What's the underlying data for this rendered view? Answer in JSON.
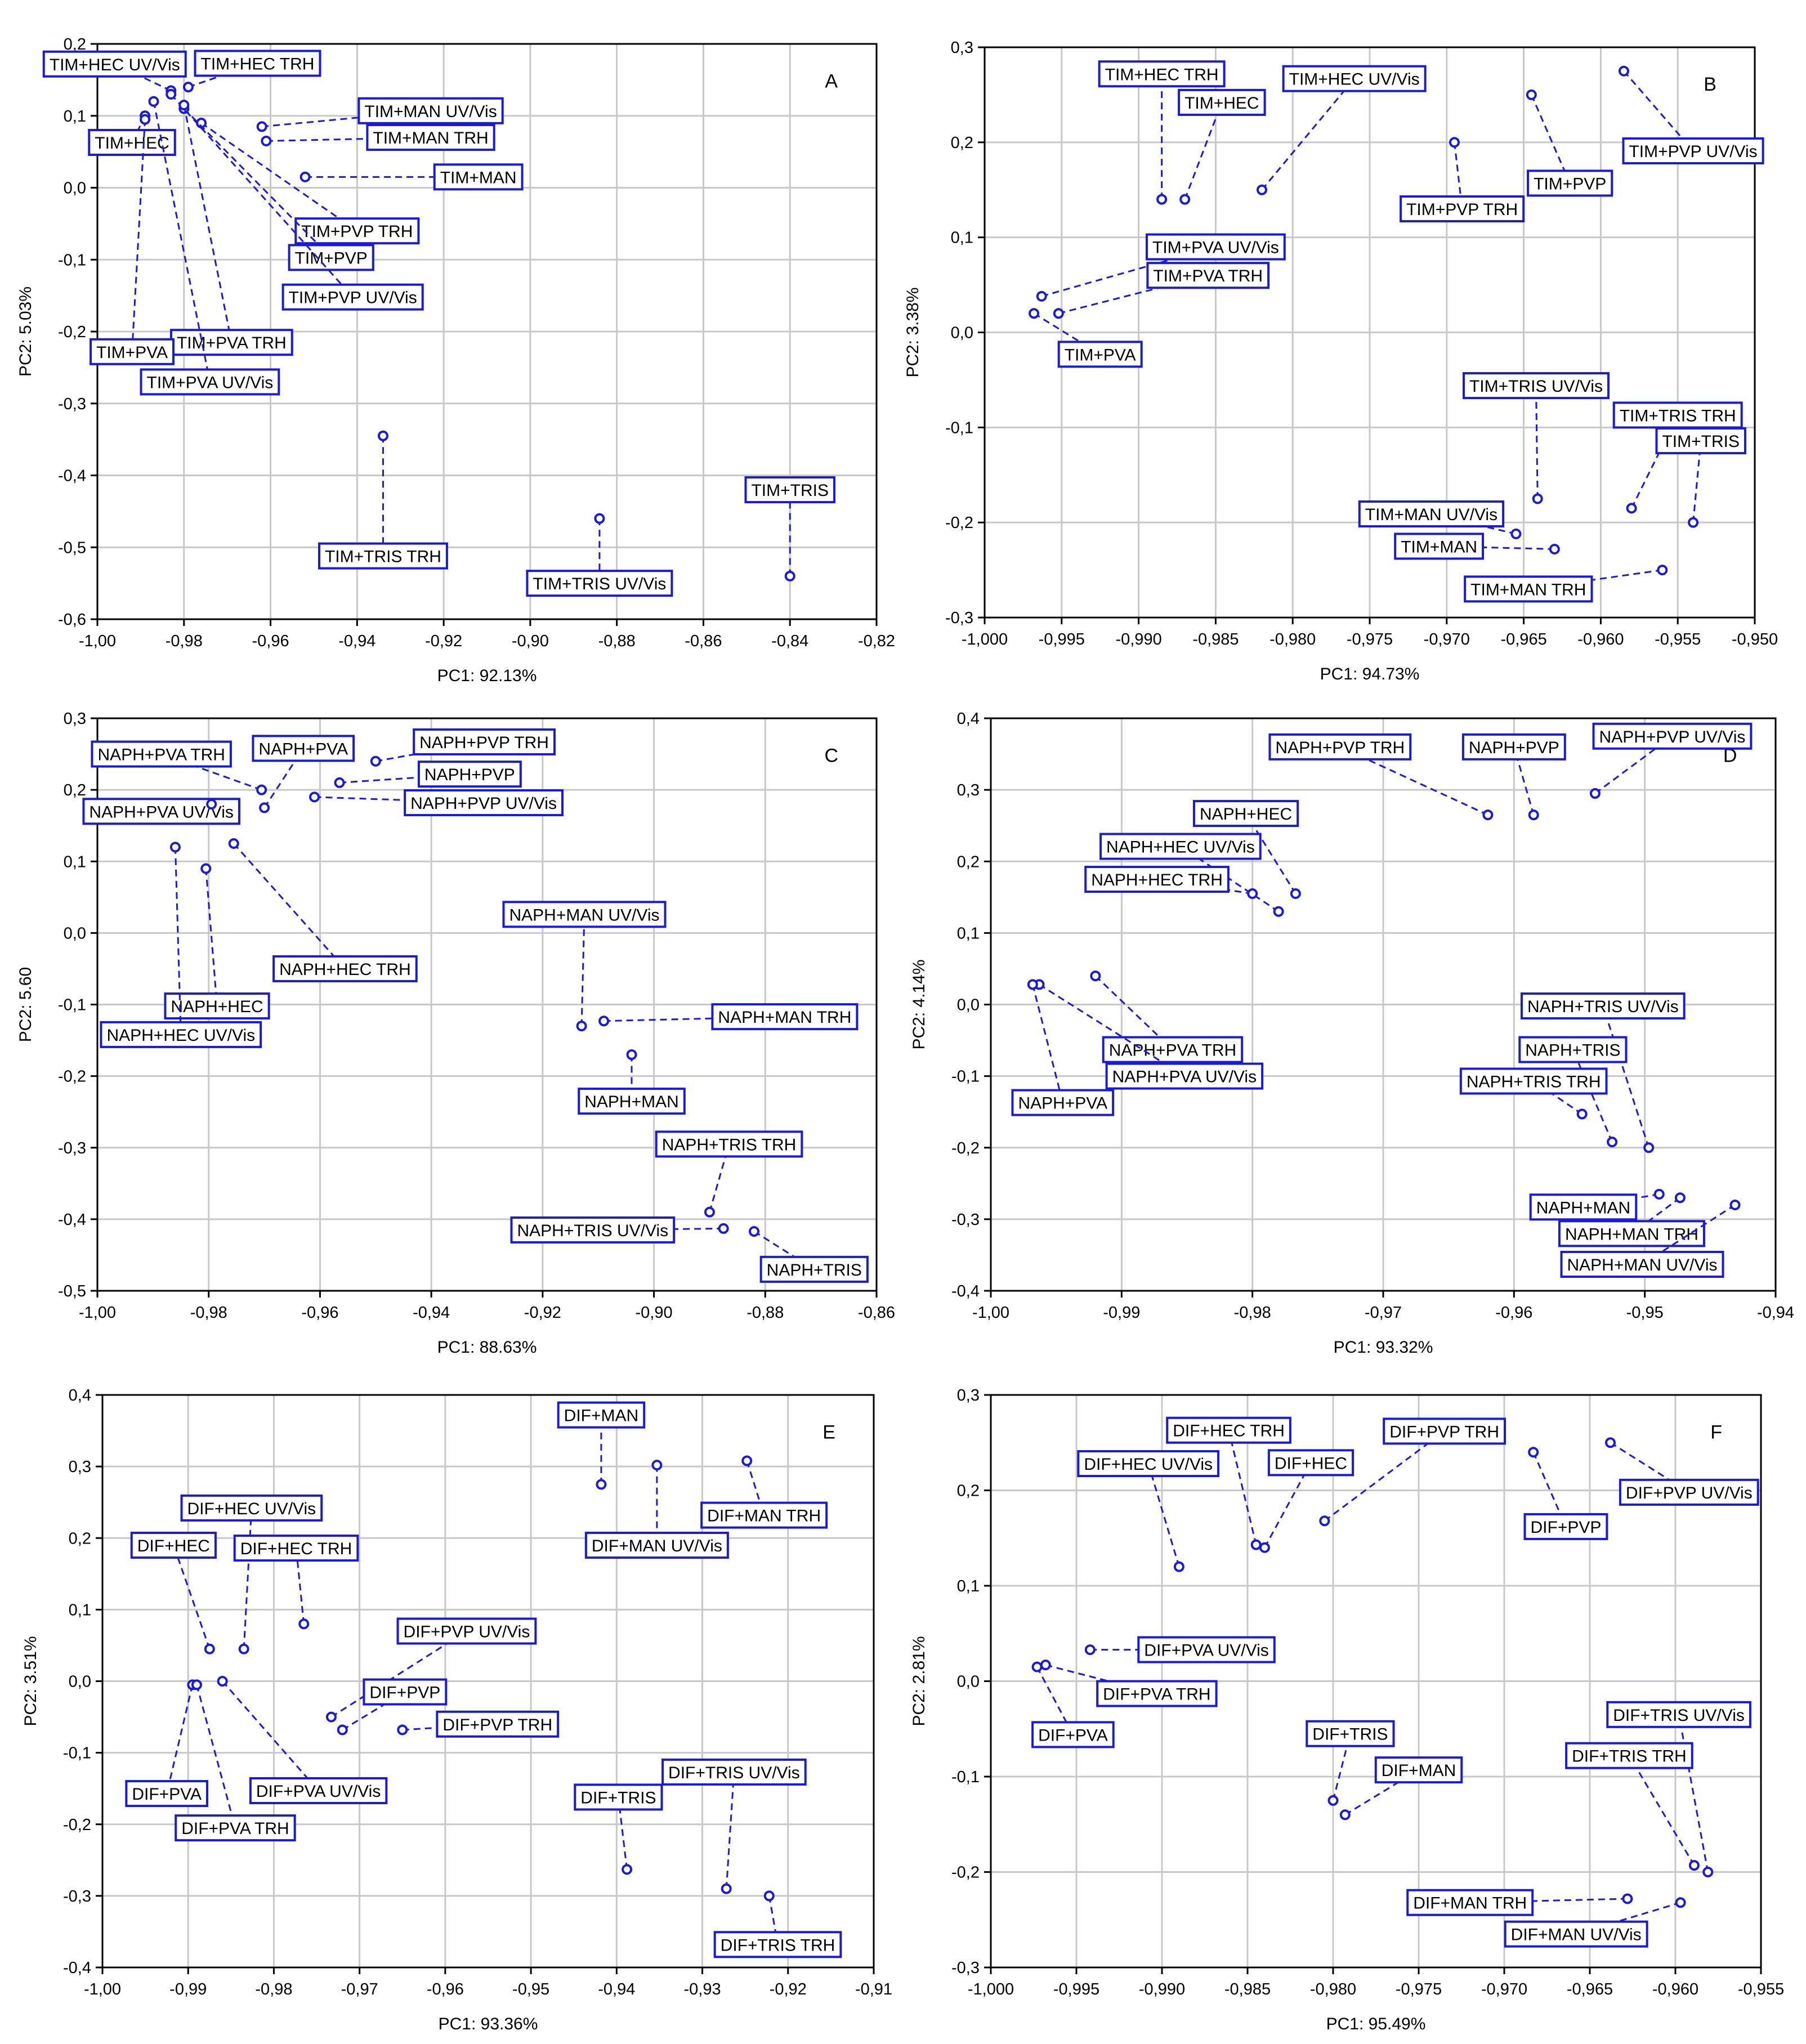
{
  "figure": {
    "accent_color": "#1a1adb",
    "grid_color": "#c8c8c8",
    "axis_color": "#000000"
  },
  "chart_data": [
    {
      "id": "A",
      "type": "scatter",
      "panel_letter": "A",
      "xlabel": "PC1: 92.13%",
      "ylabel": "PC2: 5.03%",
      "xlim": [
        -1.0,
        -0.82
      ],
      "ylim": [
        -0.6,
        0.2
      ],
      "xticks": [
        -1.0,
        -0.98,
        -0.96,
        -0.94,
        -0.92,
        -0.9,
        -0.88,
        -0.86,
        -0.84,
        -0.82
      ],
      "xtick_labels": [
        "-1,00",
        "-0,98",
        "-0,96",
        "-0,94",
        "-0,92",
        "-0,90",
        "-0,88",
        "-0,86",
        "-0,84",
        "-0,82"
      ],
      "yticks": [
        -0.6,
        -0.5,
        -0.4,
        -0.3,
        -0.2,
        -0.1,
        0.0,
        0.1,
        0.2
      ],
      "ytick_labels": [
        "-0,6",
        "-0,5",
        "-0,4",
        "-0,3",
        "-0,2",
        "-0,1",
        "0,0",
        "0,1",
        "0,2"
      ],
      "points": [
        {
          "label": "TIM+HEC UV/Vis",
          "x": -0.983,
          "y": 0.135,
          "lx": -0.996,
          "ly": 0.172
        },
        {
          "label": "TIM+HEC TRH",
          "x": -0.979,
          "y": 0.14,
          "lx": -0.963,
          "ly": 0.173
        },
        {
          "label": "TIM+HEC",
          "x": -0.989,
          "y": 0.1,
          "lx": -0.992,
          "ly": 0.063
        },
        {
          "label": "TIM+MAN UV/Vis",
          "x": -0.962,
          "y": 0.085,
          "lx": -0.923,
          "ly": 0.107
        },
        {
          "label": "TIM+MAN TRH",
          "x": -0.961,
          "y": 0.065,
          "lx": -0.923,
          "ly": 0.07
        },
        {
          "label": "TIM+MAN",
          "x": -0.952,
          "y": 0.015,
          "lx": -0.912,
          "ly": 0.015
        },
        {
          "label": "TIM+PVP TRH",
          "x": -0.976,
          "y": 0.09,
          "lx": -0.94,
          "ly": -0.06
        },
        {
          "label": "TIM+PVP",
          "x": -0.98,
          "y": 0.11,
          "lx": -0.946,
          "ly": -0.097
        },
        {
          "label": "TIM+PVP UV/Vis",
          "x": -0.983,
          "y": 0.13,
          "lx": -0.941,
          "ly": -0.152
        },
        {
          "label": "TIM+PVA TRH",
          "x": -0.98,
          "y": 0.115,
          "lx": -0.969,
          "ly": -0.215
        },
        {
          "label": "TIM+PVA",
          "x": -0.989,
          "y": 0.095,
          "lx": -0.992,
          "ly": -0.228
        },
        {
          "label": "TIM+PVA UV/Vis",
          "x": -0.987,
          "y": 0.12,
          "lx": -0.974,
          "ly": -0.27
        },
        {
          "label": "TIM+TRIS TRH",
          "x": -0.934,
          "y": -0.345,
          "lx": -0.934,
          "ly": -0.512
        },
        {
          "label": "TIM+TRIS UV/Vis",
          "x": -0.884,
          "y": -0.46,
          "lx": -0.884,
          "ly": -0.55
        },
        {
          "label": "TIM+TRIS",
          "x": -0.84,
          "y": -0.54,
          "lx": -0.84,
          "ly": -0.42
        }
      ]
    },
    {
      "id": "B",
      "type": "scatter",
      "panel_letter": "B",
      "xlabel": "PC1: 94.73%",
      "ylabel": "PC2: 3.38%",
      "xlim": [
        -1.0,
        -0.95
      ],
      "ylim": [
        -0.3,
        0.3
      ],
      "xticks": [
        -1.0,
        -0.995,
        -0.99,
        -0.985,
        -0.98,
        -0.975,
        -0.97,
        -0.965,
        -0.96,
        -0.955,
        -0.95
      ],
      "xtick_labels": [
        "-1,000",
        "-0,995",
        "-0,990",
        "-0,985",
        "-0,980",
        "-0,975",
        "-0,970",
        "-0,965",
        "-0,960",
        "-0,955",
        "-0,950"
      ],
      "yticks": [
        -0.3,
        -0.2,
        -0.1,
        0.0,
        0.1,
        0.2,
        0.3
      ],
      "ytick_labels": [
        "-0,3",
        "-0,2",
        "-0,1",
        "0,0",
        "0,1",
        "0,2",
        "0,3"
      ],
      "points": [
        {
          "label": "TIM+HEC TRH",
          "x": -0.9885,
          "y": 0.14,
          "lx": -0.9885,
          "ly": 0.272
        },
        {
          "label": "TIM+HEC",
          "x": -0.987,
          "y": 0.14,
          "lx": -0.9846,
          "ly": 0.242
        },
        {
          "label": "TIM+HEC UV/Vis",
          "x": -0.982,
          "y": 0.15,
          "lx": -0.976,
          "ly": 0.267
        },
        {
          "label": "TIM+PVP",
          "x": -0.9645,
          "y": 0.25,
          "lx": -0.962,
          "ly": 0.157
        },
        {
          "label": "TIM+PVP UV/Vis",
          "x": -0.9585,
          "y": 0.275,
          "lx": -0.954,
          "ly": 0.191
        },
        {
          "label": "TIM+PVP TRH",
          "x": -0.9695,
          "y": 0.2,
          "lx": -0.969,
          "ly": 0.13
        },
        {
          "label": "TIM+PVA UV/Vis",
          "x": -0.9963,
          "y": 0.038,
          "lx": -0.985,
          "ly": 0.09
        },
        {
          "label": "TIM+PVA TRH",
          "x": -0.9952,
          "y": 0.02,
          "lx": -0.9855,
          "ly": 0.06
        },
        {
          "label": "TIM+PVA",
          "x": -0.9968,
          "y": 0.02,
          "lx": -0.9925,
          "ly": -0.023
        },
        {
          "label": "TIM+TRIS UV/Vis",
          "x": -0.9641,
          "y": -0.175,
          "lx": -0.9642,
          "ly": -0.056
        },
        {
          "label": "TIM+TRIS TRH",
          "x": -0.958,
          "y": -0.185,
          "lx": -0.955,
          "ly": -0.087
        },
        {
          "label": "TIM+TRIS",
          "x": -0.954,
          "y": -0.2,
          "lx": -0.9535,
          "ly": -0.114
        },
        {
          "label": "TIM+MAN UV/Vis",
          "x": -0.9655,
          "y": -0.212,
          "lx": -0.971,
          "ly": -0.191
        },
        {
          "label": "TIM+MAN",
          "x": -0.963,
          "y": -0.228,
          "lx": -0.9705,
          "ly": -0.225
        },
        {
          "label": "TIM+MAN TRH",
          "x": -0.956,
          "y": -0.25,
          "lx": -0.9647,
          "ly": -0.27
        }
      ]
    },
    {
      "id": "C",
      "type": "scatter",
      "panel_letter": "C",
      "xlabel": "PC1: 88.63%",
      "ylabel": "PC2: 5.60",
      "xlim": [
        -1.0,
        -0.86
      ],
      "ylim": [
        -0.5,
        0.3
      ],
      "xticks": [
        -1.0,
        -0.98,
        -0.96,
        -0.94,
        -0.92,
        -0.9,
        -0.88,
        -0.86
      ],
      "xtick_labels": [
        "-1,00",
        "-0,98",
        "-0,96",
        "-0,94",
        "-0,92",
        "-0,90",
        "-0,88",
        "-0,86"
      ],
      "yticks": [
        -0.5,
        -0.4,
        -0.3,
        -0.2,
        -0.1,
        0.0,
        0.1,
        0.2,
        0.3
      ],
      "ytick_labels": [
        "-0,5",
        "-0,4",
        "-0,3",
        "-0,2",
        "-0,1",
        "0,0",
        "0,1",
        "0,2",
        "0,3"
      ],
      "points": [
        {
          "label": "NAPH+PVA TRH",
          "x": -0.9705,
          "y": 0.2,
          "lx": -0.9885,
          "ly": 0.25
        },
        {
          "label": "NAPH+PVA",
          "x": -0.97,
          "y": 0.175,
          "lx": -0.963,
          "ly": 0.258
        },
        {
          "label": "NAPH+PVA UV/Vis",
          "x": -0.9795,
          "y": 0.18,
          "lx": -0.9885,
          "ly": 0.17
        },
        {
          "label": "NAPH+PVP TRH",
          "x": -0.95,
          "y": 0.24,
          "lx": -0.9305,
          "ly": 0.267
        },
        {
          "label": "NAPH+PVP",
          "x": -0.9565,
          "y": 0.21,
          "lx": -0.9331,
          "ly": 0.222
        },
        {
          "label": "NAPH+PVP UV/Vis",
          "x": -0.961,
          "y": 0.19,
          "lx": -0.9306,
          "ly": 0.182
        },
        {
          "label": "NAPH+HEC TRH",
          "x": -0.9755,
          "y": 0.125,
          "lx": -0.9555,
          "ly": -0.05
        },
        {
          "label": "NAPH+HEC",
          "x": -0.9805,
          "y": 0.09,
          "lx": -0.9785,
          "ly": -0.102
        },
        {
          "label": "NAPH+HEC UV/Vis",
          "x": -0.986,
          "y": 0.12,
          "lx": -0.985,
          "ly": -0.142
        },
        {
          "label": "NAPH+MAN UV/Vis",
          "x": -0.913,
          "y": -0.13,
          "lx": -0.9125,
          "ly": 0.026
        },
        {
          "label": "NAPH+MAN TRH",
          "x": -0.909,
          "y": -0.123,
          "lx": -0.8765,
          "ly": -0.117
        },
        {
          "label": "NAPH+MAN",
          "x": -0.904,
          "y": -0.17,
          "lx": -0.904,
          "ly": -0.235
        },
        {
          "label": "NAPH+TRIS TRH",
          "x": -0.89,
          "y": -0.39,
          "lx": -0.8865,
          "ly": -0.295
        },
        {
          "label": "NAPH+TRIS UV/Vis",
          "x": -0.8875,
          "y": -0.413,
          "lx": -0.911,
          "ly": -0.415
        },
        {
          "label": "NAPH+TRIS",
          "x": -0.882,
          "y": -0.417,
          "lx": -0.8712,
          "ly": -0.47
        }
      ]
    },
    {
      "id": "D",
      "type": "scatter",
      "panel_letter": "D",
      "xlabel": "PC1: 93.32%",
      "ylabel": "PC2: 4.14%",
      "xlim": [
        -1.0,
        -0.94
      ],
      "ylim": [
        -0.4,
        0.4
      ],
      "xticks": [
        -1.0,
        -0.99,
        -0.98,
        -0.97,
        -0.96,
        -0.95,
        -0.94
      ],
      "xtick_labels": [
        "-1,00",
        "-0,99",
        "-0,98",
        "-0,97",
        "-0,96",
        "-0,95",
        "-0,94"
      ],
      "yticks": [
        -0.4,
        -0.3,
        -0.2,
        -0.1,
        0.0,
        0.1,
        0.2,
        0.3,
        0.4
      ],
      "ytick_labels": [
        "-0,4",
        "-0,3",
        "-0,2",
        "-0,1",
        "0,0",
        "0,1",
        "0,2",
        "0,3",
        "0,4"
      ],
      "points": [
        {
          "label": "NAPH+PVP TRH",
          "x": -0.962,
          "y": 0.265,
          "lx": -0.9733,
          "ly": 0.36
        },
        {
          "label": "NAPH+PVP",
          "x": -0.9585,
          "y": 0.265,
          "lx": -0.96,
          "ly": 0.36
        },
        {
          "label": "NAPH+PVP UV/Vis",
          "x": -0.9538,
          "y": 0.295,
          "lx": -0.9479,
          "ly": 0.375
        },
        {
          "label": "NAPH+HEC",
          "x": -0.9767,
          "y": 0.155,
          "lx": -0.9805,
          "ly": 0.267
        },
        {
          "label": "NAPH+HEC UV/Vis",
          "x": -0.978,
          "y": 0.13,
          "lx": -0.9855,
          "ly": 0.221
        },
        {
          "label": "NAPH+HEC TRH",
          "x": -0.98,
          "y": 0.155,
          "lx": -0.9873,
          "ly": 0.175
        },
        {
          "label": "NAPH+PVA TRH",
          "x": -0.992,
          "y": 0.04,
          "lx": -0.9861,
          "ly": -0.063
        },
        {
          "label": "NAPH+PVA UV/Vis",
          "x": -0.9963,
          "y": 0.028,
          "lx": -0.9852,
          "ly": -0.1
        },
        {
          "label": "NAPH+PVA",
          "x": -0.9968,
          "y": 0.028,
          "lx": -0.9945,
          "ly": -0.137
        },
        {
          "label": "NAPH+TRIS UV/Vis",
          "x": -0.9497,
          "y": -0.2,
          "lx": -0.9532,
          "ly": -0.002
        },
        {
          "label": "NAPH+TRIS",
          "x": -0.9525,
          "y": -0.192,
          "lx": -0.9555,
          "ly": -0.063
        },
        {
          "label": "NAPH+TRIS TRH",
          "x": -0.9548,
          "y": -0.153,
          "lx": -0.9585,
          "ly": -0.107
        },
        {
          "label": "NAPH+MAN",
          "x": -0.9489,
          "y": -0.265,
          "lx": -0.9547,
          "ly": -0.283
        },
        {
          "label": "NAPH+MAN TRH",
          "x": -0.9473,
          "y": -0.27,
          "lx": -0.951,
          "ly": -0.32
        },
        {
          "label": "NAPH+MAN UV/Vis",
          "x": -0.9431,
          "y": -0.28,
          "lx": -0.9502,
          "ly": -0.363
        }
      ]
    },
    {
      "id": "E",
      "type": "scatter",
      "panel_letter": "E",
      "xlabel": "PC1: 93.36%",
      "ylabel": "PC2: 3.51%",
      "xlim": [
        -1.0,
        -0.91
      ],
      "ylim": [
        -0.4,
        0.4
      ],
      "xticks": [
        -1.0,
        -0.99,
        -0.98,
        -0.97,
        -0.96,
        -0.95,
        -0.94,
        -0.93,
        -0.92,
        -0.91
      ],
      "xtick_labels": [
        "-1,00",
        "-0,99",
        "-0,98",
        "-0,97",
        "-0,96",
        "-0,95",
        "-0,94",
        "-0,93",
        "-0,92",
        "-0,91"
      ],
      "yticks": [
        -0.4,
        -0.3,
        -0.2,
        -0.1,
        0.0,
        0.1,
        0.2,
        0.3,
        0.4
      ],
      "ytick_labels": [
        "-0,4",
        "-0,3",
        "-0,2",
        "-0,1",
        "0,0",
        "0,1",
        "0,2",
        "0,3",
        "0,4"
      ],
      "points": [
        {
          "label": "DIF+MAN",
          "x": -0.9418,
          "y": 0.275,
          "lx": -0.9418,
          "ly": 0.372
        },
        {
          "label": "DIF+MAN UV/Vis",
          "x": -0.9353,
          "y": 0.302,
          "lx": -0.9353,
          "ly": 0.19
        },
        {
          "label": "DIF+MAN TRH",
          "x": -0.9248,
          "y": 0.308,
          "lx": -0.9228,
          "ly": 0.232
        },
        {
          "label": "DIF+HEC UV/Vis",
          "x": -0.9835,
          "y": 0.045,
          "lx": -0.9826,
          "ly": 0.242
        },
        {
          "label": "DIF+HEC",
          "x": -0.9875,
          "y": 0.045,
          "lx": -0.9917,
          "ly": 0.19
        },
        {
          "label": "DIF+HEC TRH",
          "x": -0.9765,
          "y": 0.08,
          "lx": -0.9774,
          "ly": 0.186
        },
        {
          "label": "DIF+PVP UV/Vis",
          "x": -0.9733,
          "y": -0.05,
          "lx": -0.9575,
          "ly": 0.07
        },
        {
          "label": "DIF+PVP",
          "x": -0.972,
          "y": -0.068,
          "lx": -0.9647,
          "ly": -0.015
        },
        {
          "label": "DIF+PVP TRH",
          "x": -0.965,
          "y": -0.068,
          "lx": -0.9539,
          "ly": -0.06
        },
        {
          "label": "DIF+PVA",
          "x": -0.9895,
          "y": -0.005,
          "lx": -0.9925,
          "ly": -0.157
        },
        {
          "label": "DIF+PVA UV/Vis",
          "x": -0.986,
          "y": 0.0,
          "lx": -0.9748,
          "ly": -0.153
        },
        {
          "label": "DIF+PVA TRH",
          "x": -0.989,
          "y": -0.005,
          "lx": -0.9845,
          "ly": -0.205
        },
        {
          "label": "DIF+TRIS",
          "x": -0.9388,
          "y": -0.263,
          "lx": -0.9398,
          "ly": -0.162
        },
        {
          "label": "DIF+TRIS UV/Vis",
          "x": -0.9272,
          "y": -0.29,
          "lx": -0.9263,
          "ly": -0.127
        },
        {
          "label": "DIF+TRIS TRH",
          "x": -0.9222,
          "y": -0.3,
          "lx": -0.9212,
          "ly": -0.368
        }
      ]
    },
    {
      "id": "F",
      "type": "scatter",
      "panel_letter": "F",
      "xlabel": "PC1: 95.49%",
      "ylabel": "PC2: 2.81%",
      "xlim": [
        -1.0,
        -0.955
      ],
      "ylim": [
        -0.3,
        0.3
      ],
      "xticks": [
        -1.0,
        -0.995,
        -0.99,
        -0.985,
        -0.98,
        -0.975,
        -0.97,
        -0.965,
        -0.96,
        -0.955
      ],
      "xtick_labels": [
        "-1,000",
        "-0,995",
        "-0,990",
        "-0,985",
        "-0,980",
        "-0,975",
        "-0,970",
        "-0,965",
        "-0,960",
        "-0,955"
      ],
      "yticks": [
        -0.3,
        -0.2,
        -0.1,
        0.0,
        0.1,
        0.2,
        0.3
      ],
      "ytick_labels": [
        "-0,3",
        "-0,2",
        "-0,1",
        "0,0",
        "0,1",
        "0,2",
        "0,3"
      ],
      "points": [
        {
          "label": "DIF+HEC TRH",
          "x": -0.9845,
          "y": 0.143,
          "lx": -0.9861,
          "ly": 0.263
        },
        {
          "label": "DIF+HEC UV/Vis",
          "x": -0.989,
          "y": 0.12,
          "lx": -0.9908,
          "ly": 0.228
        },
        {
          "label": "DIF+HEC",
          "x": -0.984,
          "y": 0.14,
          "lx": -0.9813,
          "ly": 0.229
        },
        {
          "label": "DIF+PVP TRH",
          "x": -0.9805,
          "y": 0.168,
          "lx": -0.9735,
          "ly": 0.262
        },
        {
          "label": "DIF+PVP",
          "x": -0.9683,
          "y": 0.24,
          "lx": -0.9664,
          "ly": 0.162
        },
        {
          "label": "DIF+PVP UV/Vis",
          "x": -0.9638,
          "y": 0.25,
          "lx": -0.9592,
          "ly": 0.198
        },
        {
          "label": "DIF+PVA UV/Vis",
          "x": -0.9942,
          "y": 0.033,
          "lx": -0.9874,
          "ly": 0.033
        },
        {
          "label": "DIF+PVA TRH",
          "x": -0.9968,
          "y": 0.017,
          "lx": -0.9903,
          "ly": -0.013
        },
        {
          "label": "DIF+PVA",
          "x": -0.9973,
          "y": 0.015,
          "lx": -0.9952,
          "ly": -0.056
        },
        {
          "label": "DIF+TRIS",
          "x": -0.98,
          "y": -0.125,
          "lx": -0.979,
          "ly": -0.055
        },
        {
          "label": "DIF+MAN",
          "x": -0.9793,
          "y": -0.14,
          "lx": -0.975,
          "ly": -0.093
        },
        {
          "label": "DIF+TRIS UV/Vis",
          "x": -0.9581,
          "y": -0.2,
          "lx": -0.9598,
          "ly": -0.035
        },
        {
          "label": "DIF+TRIS TRH",
          "x": -0.9589,
          "y": -0.193,
          "lx": -0.9627,
          "ly": -0.078
        },
        {
          "label": "DIF+MAN TRH",
          "x": -0.9628,
          "y": -0.228,
          "lx": -0.972,
          "ly": -0.232
        },
        {
          "label": "DIF+MAN UV/Vis",
          "x": -0.9597,
          "y": -0.232,
          "lx": -0.9658,
          "ly": -0.265
        }
      ]
    }
  ]
}
